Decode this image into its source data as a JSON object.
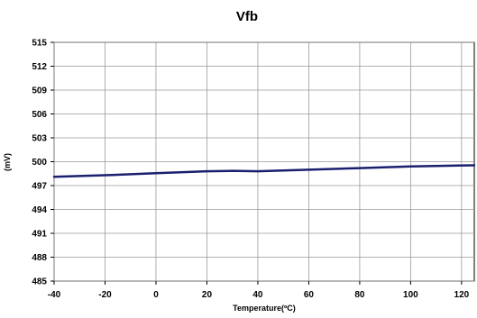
{
  "chart_data": {
    "type": "line",
    "title": "Vfb",
    "xlabel": "Temperature(ºC)",
    "ylabel": "(mV)",
    "xlim": [
      -40,
      125
    ],
    "ylim": [
      485,
      515
    ],
    "x_ticks": [
      -40,
      -20,
      0,
      20,
      40,
      60,
      80,
      100,
      120
    ],
    "y_ticks": [
      485,
      488,
      491,
      494,
      497,
      500,
      503,
      506,
      509,
      512,
      515
    ],
    "grid": true,
    "series": [
      {
        "color": "#1a1f6e",
        "x": [
          -40,
          -20,
          0,
          20,
          30,
          40,
          60,
          80,
          100,
          125
        ],
        "y": [
          498.1,
          498.3,
          498.55,
          498.8,
          498.85,
          498.8,
          499.0,
          499.2,
          499.4,
          499.55
        ]
      }
    ]
  }
}
